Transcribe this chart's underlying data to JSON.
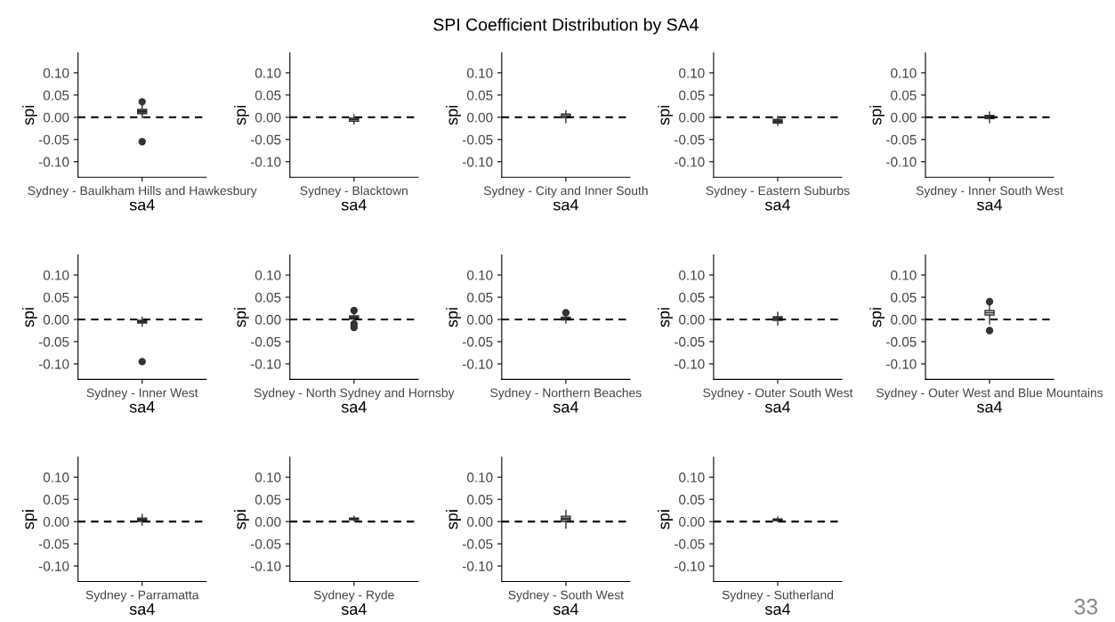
{
  "chart_data": [
    {
      "type": "box",
      "categories": [
        "Sydney - Baulkham Hills and Hawkesbury"
      ],
      "xlabel": "sa4",
      "ylabel": "spi",
      "ylim": [
        -0.135,
        0.145
      ],
      "yticks": [
        {
          "value": -0.1,
          "label": "-0.10"
        },
        {
          "value": -0.05,
          "label": "-0.05"
        },
        {
          "value": 0,
          "label": "0.00"
        },
        {
          "value": 0.05,
          "label": "0.05"
        },
        {
          "value": 0.1,
          "label": "0.10"
        }
      ],
      "colors": [
        "#555555"
      ],
      "boxes": [
        {
          "low": 0.0,
          "q1": 0.008,
          "median": 0.013,
          "q3": 0.018,
          "high": 0.03,
          "outliers": [
            -0.055,
            0.035
          ]
        }
      ],
      "ref_lines": [
        {
          "axis": "y",
          "value": 0,
          "line_style": "dashed"
        }
      ]
    },
    {
      "type": "box",
      "categories": [
        "Sydney - Blacktown"
      ],
      "xlabel": "sa4",
      "ylabel": "spi",
      "ylim": [
        -0.135,
        0.145
      ],
      "yticks": [
        {
          "value": -0.1,
          "label": "-0.10"
        },
        {
          "value": -0.05,
          "label": "-0.05"
        },
        {
          "value": 0,
          "label": "0.00"
        },
        {
          "value": 0.05,
          "label": "0.05"
        },
        {
          "value": 0.1,
          "label": "0.10"
        }
      ],
      "colors": [
        "#ffffff"
      ],
      "boxes": [
        {
          "low": -0.015,
          "q1": -0.009,
          "median": -0.005,
          "q3": -0.002,
          "high": 0.005
        }
      ],
      "ref_lines": [
        {
          "axis": "y",
          "value": 0,
          "line_style": "dashed"
        }
      ]
    },
    {
      "type": "box",
      "title": "SPI Coefficient Distribution by SA4",
      "categories": [
        "Sydney - City and Inner South"
      ],
      "xlabel": "sa4",
      "ylabel": "spi",
      "ylim": [
        -0.135,
        0.145
      ],
      "yticks": [
        {
          "value": -0.1,
          "label": "-0.10"
        },
        {
          "value": -0.05,
          "label": "-0.05"
        },
        {
          "value": 0,
          "label": "0.00"
        },
        {
          "value": 0.05,
          "label": "0.05"
        },
        {
          "value": 0.1,
          "label": "0.10"
        }
      ],
      "colors": [
        "#ffffff"
      ],
      "boxes": [
        {
          "low": -0.012,
          "q1": -0.001,
          "median": 0.003,
          "q3": 0.007,
          "high": 0.015
        }
      ],
      "ref_lines": [
        {
          "axis": "y",
          "value": 0,
          "line_style": "dashed"
        }
      ]
    },
    {
      "type": "box",
      "categories": [
        "Sydney - Eastern Suburbs"
      ],
      "xlabel": "sa4",
      "ylabel": "spi",
      "ylim": [
        -0.135,
        0.145
      ],
      "yticks": [
        {
          "value": -0.1,
          "label": "-0.10"
        },
        {
          "value": -0.05,
          "label": "-0.05"
        },
        {
          "value": 0,
          "label": "0.00"
        },
        {
          "value": 0.05,
          "label": "0.05"
        },
        {
          "value": 0.1,
          "label": "0.10"
        }
      ],
      "colors": [
        "#555555"
      ],
      "boxes": [
        {
          "low": -0.018,
          "q1": -0.013,
          "median": -0.009,
          "q3": -0.005,
          "high": 0.002
        }
      ],
      "ref_lines": [
        {
          "axis": "y",
          "value": 0,
          "line_style": "dashed"
        }
      ]
    },
    {
      "type": "box",
      "categories": [
        "Sydney - Inner South West"
      ],
      "xlabel": "sa4",
      "ylabel": "spi",
      "ylim": [
        -0.135,
        0.145
      ],
      "yticks": [
        {
          "value": -0.1,
          "label": "-0.10"
        },
        {
          "value": -0.05,
          "label": "-0.05"
        },
        {
          "value": 0,
          "label": "0.00"
        },
        {
          "value": 0.05,
          "label": "0.05"
        },
        {
          "value": 0.1,
          "label": "0.10"
        }
      ],
      "colors": [
        "#555555"
      ],
      "boxes": [
        {
          "low": -0.012,
          "q1": -0.003,
          "median": 0.001,
          "q3": 0.004,
          "high": 0.012
        }
      ],
      "ref_lines": [
        {
          "axis": "y",
          "value": 0,
          "line_style": "dashed"
        }
      ]
    },
    {
      "type": "box",
      "categories": [
        "Sydney - Inner West"
      ],
      "xlabel": "sa4",
      "ylabel": "spi",
      "ylim": [
        -0.135,
        0.145
      ],
      "yticks": [
        {
          "value": -0.1,
          "label": "-0.10"
        },
        {
          "value": -0.05,
          "label": "-0.05"
        },
        {
          "value": 0,
          "label": "0.00"
        },
        {
          "value": 0.05,
          "label": "0.05"
        },
        {
          "value": 0.1,
          "label": "0.10"
        }
      ],
      "colors": [
        "#555555"
      ],
      "boxes": [
        {
          "low": -0.015,
          "q1": -0.008,
          "median": -0.005,
          "q3": -0.002,
          "high": 0.005,
          "outliers": [
            -0.095
          ]
        }
      ],
      "ref_lines": [
        {
          "axis": "y",
          "value": 0,
          "line_style": "dashed"
        }
      ]
    },
    {
      "type": "box",
      "categories": [
        "Sydney - North Sydney and Hornsby"
      ],
      "xlabel": "sa4",
      "ylabel": "spi",
      "ylim": [
        -0.135,
        0.145
      ],
      "yticks": [
        {
          "value": -0.1,
          "label": "-0.10"
        },
        {
          "value": -0.05,
          "label": "-0.05"
        },
        {
          "value": 0,
          "label": "0.00"
        },
        {
          "value": 0.05,
          "label": "0.05"
        },
        {
          "value": 0.1,
          "label": "0.10"
        }
      ],
      "colors": [
        "#555555"
      ],
      "boxes": [
        {
          "low": -0.005,
          "q1": 0.001,
          "median": 0.004,
          "q3": 0.008,
          "high": 0.015,
          "outliers": [
            -0.01,
            -0.018,
            0.02
          ]
        }
      ],
      "ref_lines": [
        {
          "axis": "y",
          "value": 0,
          "line_style": "dashed"
        }
      ]
    },
    {
      "type": "box",
      "categories": [
        "Sydney - Northern Beaches"
      ],
      "xlabel": "sa4",
      "ylabel": "spi",
      "ylim": [
        -0.135,
        0.145
      ],
      "yticks": [
        {
          "value": -0.1,
          "label": "-0.10"
        },
        {
          "value": -0.05,
          "label": "-0.05"
        },
        {
          "value": 0,
          "label": "0.00"
        },
        {
          "value": 0.05,
          "label": "0.05"
        },
        {
          "value": 0.1,
          "label": "0.10"
        }
      ],
      "colors": [
        "#555555"
      ],
      "boxes": [
        {
          "low": -0.008,
          "q1": -0.001,
          "median": 0.002,
          "q3": 0.005,
          "high": 0.012,
          "outliers": [
            0.015
          ]
        }
      ],
      "ref_lines": [
        {
          "axis": "y",
          "value": 0,
          "line_style": "dashed"
        }
      ]
    },
    {
      "type": "box",
      "categories": [
        "Sydney - Outer South West"
      ],
      "xlabel": "sa4",
      "ylabel": "spi",
      "ylim": [
        -0.135,
        0.145
      ],
      "yticks": [
        {
          "value": -0.1,
          "label": "-0.10"
        },
        {
          "value": -0.05,
          "label": "-0.05"
        },
        {
          "value": 0,
          "label": "0.00"
        },
        {
          "value": 0.05,
          "label": "0.05"
        },
        {
          "value": 0.1,
          "label": "0.10"
        }
      ],
      "colors": [
        "#555555"
      ],
      "boxes": [
        {
          "low": -0.012,
          "q1": -0.002,
          "median": 0.002,
          "q3": 0.006,
          "high": 0.016
        }
      ],
      "ref_lines": [
        {
          "axis": "y",
          "value": 0,
          "line_style": "dashed"
        }
      ]
    },
    {
      "type": "box",
      "categories": [
        "Sydney - Outer West and Blue Mountains"
      ],
      "xlabel": "sa4",
      "ylabel": "spi",
      "ylim": [
        -0.135,
        0.145
      ],
      "yticks": [
        {
          "value": -0.1,
          "label": "-0.10"
        },
        {
          "value": -0.05,
          "label": "-0.05"
        },
        {
          "value": 0,
          "label": "0.00"
        },
        {
          "value": 0.05,
          "label": "0.05"
        },
        {
          "value": 0.1,
          "label": "0.10"
        }
      ],
      "colors": [
        "#ffffff"
      ],
      "boxes": [
        {
          "low": -0.01,
          "q1": 0.01,
          "median": 0.015,
          "q3": 0.02,
          "high": 0.035,
          "outliers": [
            -0.025,
            0.04
          ]
        }
      ],
      "ref_lines": [
        {
          "axis": "y",
          "value": 0,
          "line_style": "dashed"
        }
      ]
    },
    {
      "type": "box",
      "categories": [
        "Sydney - Parramatta"
      ],
      "xlabel": "sa4",
      "ylabel": "spi",
      "ylim": [
        -0.135,
        0.145
      ],
      "yticks": [
        {
          "value": -0.1,
          "label": "-0.10"
        },
        {
          "value": -0.05,
          "label": "-0.05"
        },
        {
          "value": 0,
          "label": "0.00"
        },
        {
          "value": 0.05,
          "label": "0.05"
        },
        {
          "value": 0.1,
          "label": "0.10"
        }
      ],
      "colors": [
        "#555555"
      ],
      "boxes": [
        {
          "low": -0.008,
          "q1": 0.0,
          "median": 0.004,
          "q3": 0.008,
          "high": 0.016
        }
      ],
      "ref_lines": [
        {
          "axis": "y",
          "value": 0,
          "line_style": "dashed"
        }
      ]
    },
    {
      "type": "box",
      "categories": [
        "Sydney - Ryde"
      ],
      "xlabel": "sa4",
      "ylabel": "spi",
      "ylim": [
        -0.135,
        0.145
      ],
      "yticks": [
        {
          "value": -0.1,
          "label": "-0.10"
        },
        {
          "value": -0.05,
          "label": "-0.05"
        },
        {
          "value": 0,
          "label": "0.00"
        },
        {
          "value": 0.05,
          "label": "0.05"
        },
        {
          "value": 0.1,
          "label": "0.10"
        }
      ],
      "colors": [
        "#555555"
      ],
      "boxes": [
        {
          "low": 0.001,
          "q1": 0.004,
          "median": 0.006,
          "q3": 0.008,
          "high": 0.012
        }
      ],
      "ref_lines": [
        {
          "axis": "y",
          "value": 0,
          "line_style": "dashed"
        }
      ]
    },
    {
      "type": "box",
      "categories": [
        "Sydney - South West"
      ],
      "xlabel": "sa4",
      "ylabel": "spi",
      "ylim": [
        -0.135,
        0.145
      ],
      "yticks": [
        {
          "value": -0.1,
          "label": "-0.10"
        },
        {
          "value": -0.05,
          "label": "-0.05"
        },
        {
          "value": 0,
          "label": "0.00"
        },
        {
          "value": 0.05,
          "label": "0.05"
        },
        {
          "value": 0.1,
          "label": "0.10"
        }
      ],
      "colors": [
        "#888888"
      ],
      "boxes": [
        {
          "low": -0.015,
          "q1": 0.0,
          "median": 0.006,
          "q3": 0.012,
          "high": 0.025
        }
      ],
      "ref_lines": [
        {
          "axis": "y",
          "value": 0,
          "line_style": "dashed"
        }
      ]
    },
    {
      "type": "box",
      "categories": [
        "Sydney - Sutherland"
      ],
      "xlabel": "sa4",
      "ylabel": "spi",
      "ylim": [
        -0.135,
        0.145
      ],
      "yticks": [
        {
          "value": -0.1,
          "label": "-0.10"
        },
        {
          "value": -0.05,
          "label": "-0.05"
        },
        {
          "value": 0,
          "label": "0.00"
        },
        {
          "value": 0.05,
          "label": "0.05"
        },
        {
          "value": 0.1,
          "label": "0.10"
        }
      ],
      "colors": [
        "#555555"
      ],
      "boxes": [
        {
          "low": 0.0,
          "q1": 0.002,
          "median": 0.004,
          "q3": 0.006,
          "high": 0.01
        }
      ],
      "ref_lines": [
        {
          "axis": "y",
          "value": 0,
          "line_style": "dashed"
        }
      ],
      "annotations": [
        "33"
      ]
    }
  ]
}
